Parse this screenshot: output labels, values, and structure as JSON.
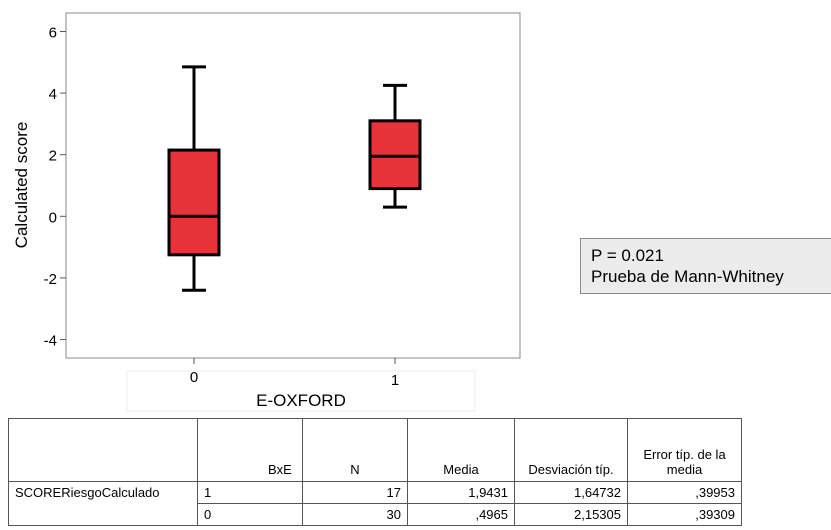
{
  "chart_data": {
    "type": "box",
    "xlabel": "E-OXFORD",
    "ylabel": "Calculated score",
    "categories": [
      "0",
      "1"
    ],
    "ylim": [
      -4.6,
      6.6
    ],
    "yticks": [
      -4,
      -2,
      0,
      2,
      4,
      6
    ],
    "yticklabels": [
      "-4",
      "-2",
      "0",
      "2",
      "4",
      "6"
    ],
    "series": [
      {
        "category": "0",
        "whisker_low": -2.4,
        "q1": -1.25,
        "median": 0.0,
        "q3": 2.15,
        "whisker_high": 4.85
      },
      {
        "category": "1",
        "whisker_low": 0.3,
        "q1": 0.9,
        "median": 1.95,
        "q3": 3.1,
        "whisker_high": 4.25
      }
    ],
    "box_color": "#e8323a",
    "grid": false
  },
  "annotation": {
    "line1": "P = 0.021",
    "line2": "Prueba de Mann-Whitney"
  },
  "table": {
    "headers": [
      "",
      "BxE",
      "N",
      "Media",
      "Desviación típ.",
      "Error típ. de la media"
    ],
    "variable": "SCORERiesgoCalculado",
    "rows": [
      {
        "group": "1",
        "n": "17",
        "media": "1,9431",
        "desv": "1,64732",
        "error": ",39953"
      },
      {
        "group": "0",
        "n": "30",
        "media": ",4965",
        "desv": "2,15305",
        "error": ",39309"
      }
    ]
  }
}
